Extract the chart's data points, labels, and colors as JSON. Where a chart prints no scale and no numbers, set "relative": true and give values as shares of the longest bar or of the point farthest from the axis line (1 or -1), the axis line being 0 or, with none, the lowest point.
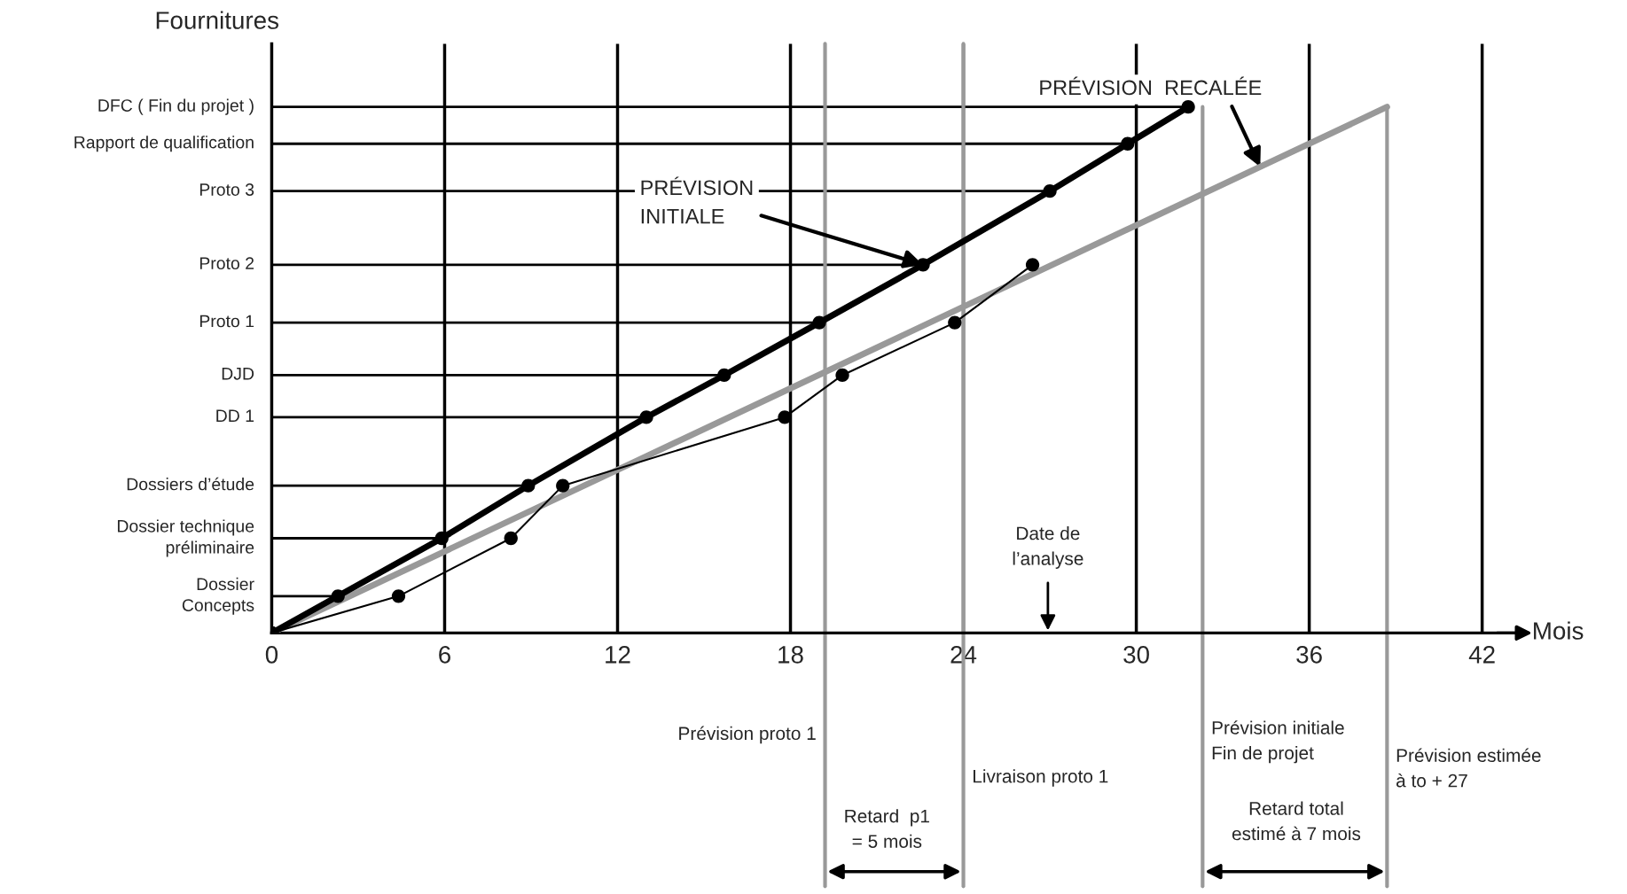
{
  "chart_data": {
    "type": "line",
    "ylabel": "Fournitures",
    "xlabel": "Mois",
    "xlim": [
      0,
      43.3
    ],
    "xticks": [
      0,
      6,
      12,
      18,
      24,
      30,
      36,
      42
    ],
    "relative": true,
    "grid": "x",
    "marker": "circle",
    "series": [
      {
        "color": "#000000",
        "x": [
          0,
          2.3,
          5.9,
          8.9,
          13,
          15.7,
          19,
          22.6,
          27,
          29.7,
          31.8
        ],
        "values": [
          0,
          0.07,
          0.18,
          0.28,
          0.41,
          0.49,
          0.59,
          0.7,
          0.84,
          0.93,
          1
        ]
      },
      {
        "color": "#999999",
        "marker": "none",
        "x": [
          0,
          38.7
        ],
        "values": [
          0,
          1
        ]
      },
      {
        "color": "#000000",
        "x": [
          0,
          4.4,
          8.3,
          10.1,
          17.8,
          19.8,
          23.7,
          26.4
        ],
        "values": [
          0,
          0.07,
          0.18,
          0.28,
          0.41,
          0.49,
          0.59,
          0.7
        ]
      }
    ],
    "ref_lines": [
      {
        "axis": "y",
        "value": 0.07,
        "label": "Dossier\nConcepts",
        "color": "#000000"
      },
      {
        "axis": "y",
        "value": 0.18,
        "label": "Dossier technique\npréliminaire",
        "color": "#000000"
      },
      {
        "axis": "y",
        "value": 0.28,
        "label": "Dossiers d’étude",
        "color": "#000000"
      },
      {
        "axis": "y",
        "value": 0.41,
        "label": "DD 1",
        "color": "#000000"
      },
      {
        "axis": "y",
        "value": 0.49,
        "label": "DJD",
        "color": "#000000"
      },
      {
        "axis": "y",
        "value": 0.59,
        "label": "Proto 1",
        "color": "#000000"
      },
      {
        "axis": "y",
        "value": 0.7,
        "label": "Proto 2",
        "color": "#000000"
      },
      {
        "axis": "y",
        "value": 0.84,
        "label": "Proto 3",
        "color": "#000000"
      },
      {
        "axis": "y",
        "value": 0.93,
        "label": "Rapport de qualification",
        "color": "#000000"
      },
      {
        "axis": "y",
        "value": 1,
        "label": "DFC ( Fin du projet )",
        "color": "#000000"
      },
      {
        "axis": "x",
        "value": 19.2,
        "label": "Prévision proto 1",
        "color": "#999999"
      },
      {
        "axis": "x",
        "value": 24,
        "label": "Livraison proto 1",
        "color": "#999999"
      },
      {
        "axis": "x",
        "value": 32.3,
        "label": "Prévision initiale\nFin de projet",
        "color": "#999999"
      },
      {
        "axis": "x",
        "value": 38.7,
        "label": "Prévision estimée\nà to + 27",
        "color": "#999999"
      }
    ],
    "annotations": [
      {
        "text": "PRÉVISION\nINITIALE",
        "x": 22.6,
        "y": 0.7
      },
      {
        "text": "PRÉVISION  RECALÉE",
        "x": 34.3,
        "y": 0.886
      },
      "Date de\nl’analyse",
      "Retard  p1\n= 5 mois",
      "Retard total\nestimé à 7 mois"
    ]
  }
}
